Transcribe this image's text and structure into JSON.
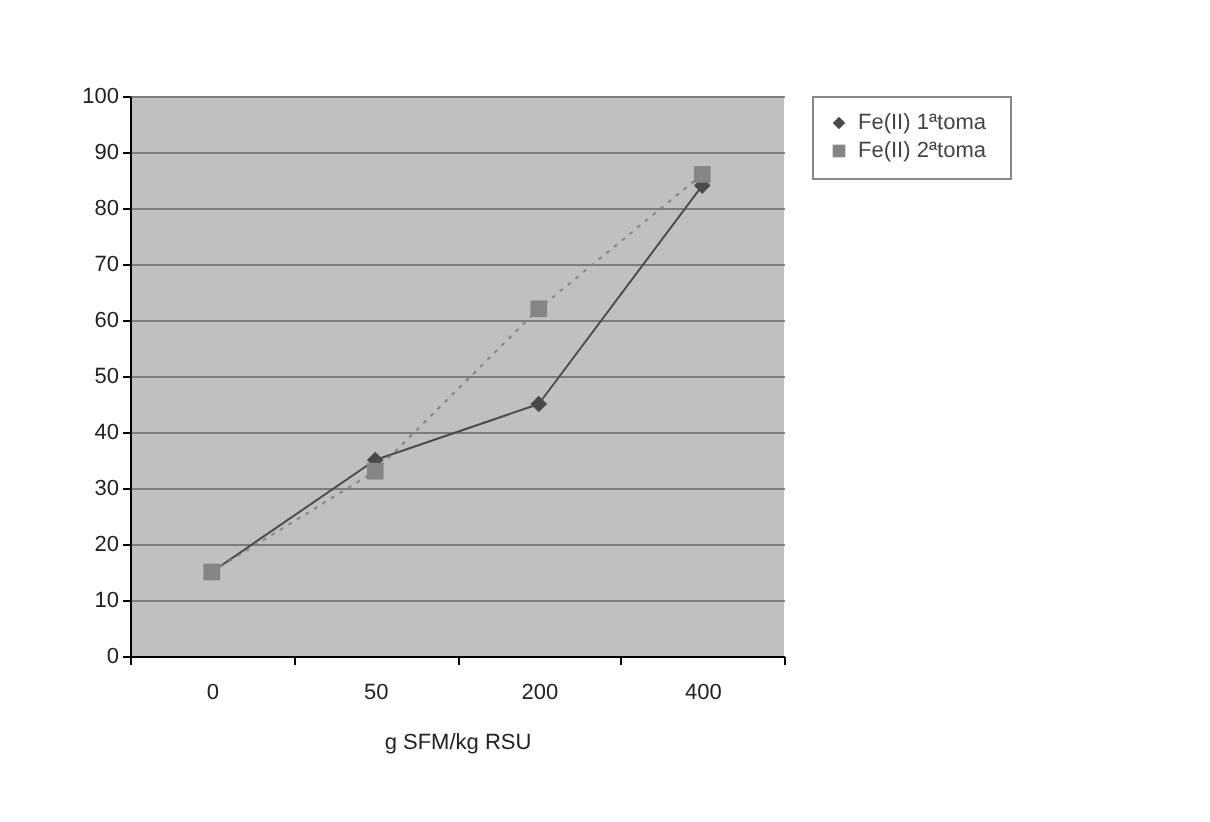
{
  "chart_data": {
    "type": "line",
    "xlabel": "g SFM/kg RSU",
    "categories": [
      "0",
      "50",
      "200",
      "400"
    ],
    "series": [
      {
        "name": "Fe(II)  1ªtoma",
        "color": "#4a4a4a",
        "values": [
          15,
          35,
          45,
          84
        ],
        "marker": "diamond",
        "line_style": "solid"
      },
      {
        "name": "Fe(II)  2ªtoma",
        "color": "#858585",
        "values": [
          15,
          33,
          62,
          86
        ],
        "marker": "square",
        "line_style": "dotted"
      }
    ],
    "ylim": [
      0,
      100
    ],
    "yticks": [
      0,
      10,
      20,
      30,
      40,
      50,
      60,
      70,
      80,
      90,
      100
    ],
    "grid": "y",
    "legend": "right"
  }
}
